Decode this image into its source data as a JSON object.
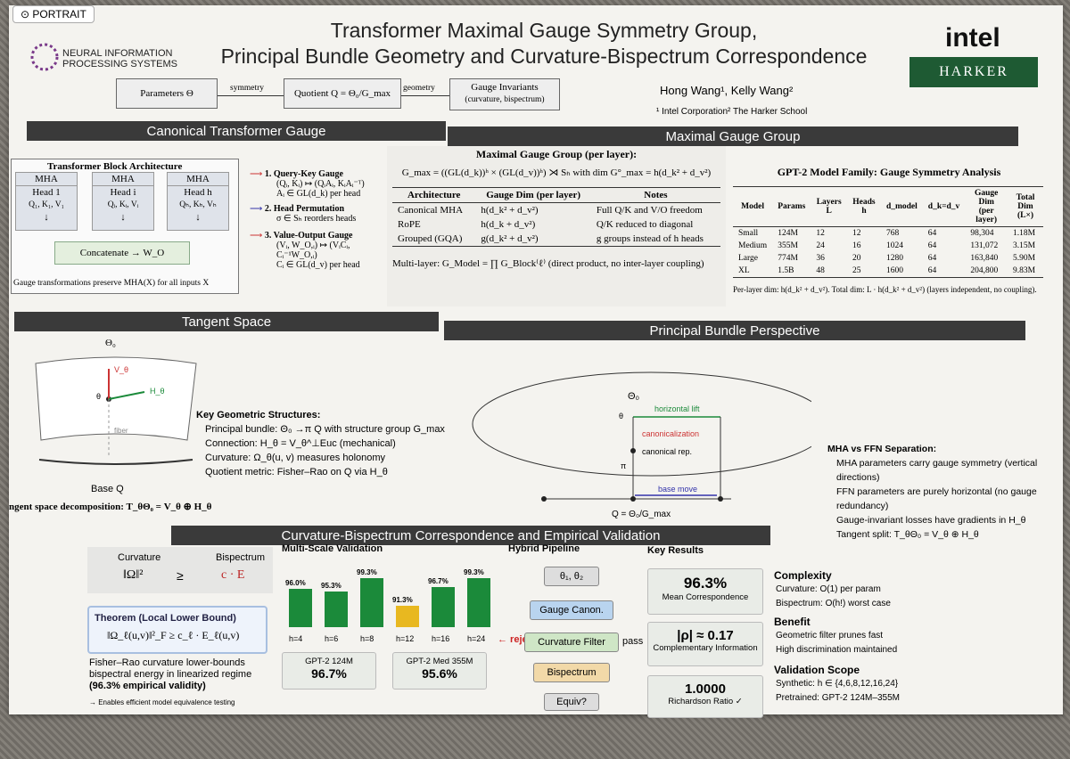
{
  "badge": "PORTRAIT",
  "title": {
    "line1": "Transformer Maximal Gauge Symmetry Group,",
    "line2": "Principal Bundle Geometry and Curvature-Bispectrum Correspondence"
  },
  "neurips": {
    "line1": "NEURAL INFORMATION",
    "line2": "PROCESSING SYSTEMS"
  },
  "authors": "Hong Wang¹, Kelly Wang²",
  "affiliations": "¹ Intel Corporation² The Harker School",
  "intel": "intel",
  "harker": "HARKER",
  "flow": {
    "a": "Parameters Θ",
    "arrow1": "symmetry",
    "b": "Quotient Q = Θ₀/G_max",
    "arrow2": "geometry",
    "c": "Gauge Invariants",
    "c2": "(curvature, bispectrum)"
  },
  "sections": {
    "canonical": "Canonical Transformer Gauge",
    "maximal": "Maximal Gauge Group",
    "tangent": "Tangent Space",
    "bundle": "Principal Bundle Perspective",
    "curv": "Curvature-Bispectrum Correspondence and Empirical Validation"
  },
  "block": {
    "title": "Transformer Block Architecture",
    "mha": "MHA",
    "h1": "Head 1",
    "h1b": "Q₁, K₁, V₁",
    "hi": "Head i",
    "hib": "Qᵢ, Kᵢ, Vᵢ",
    "hh": "Head h",
    "hhb": "Qₕ, Kₕ, Vₕ",
    "arrow": "↓",
    "concat": "Concatenate → W_O",
    "note": "Gauge transformations preserve MHA(X) for all inputs X"
  },
  "gauges": [
    {
      "t": "1. Query-Key Gauge",
      "a": "(Qᵢ, Kᵢ) ↦ (QᵢAᵢ, KᵢAᵢ⁻ᵀ)",
      "b": "Aᵢ ∈ GL(d_k) per head"
    },
    {
      "t": "2. Head Permutation",
      "a": "σ ∈ Sₕ reorders heads",
      "b": ""
    },
    {
      "t": "3. Value-Output Gauge",
      "a": "(Vᵢ, W_O,ᵢ) ↦ (VᵢCᵢ, Cᵢ⁻¹W_O,ᵢ)",
      "b": "Cᵢ ∈ GL(d_v) per head"
    }
  ],
  "mgroup": {
    "title": "Maximal Gauge Group (per layer):",
    "formula": "G_max = ((GL(d_k))ʰ × (GL(d_v))ʰ) ⋊ Sₕ   with   dim G°_max = h(d_k² + d_v²)",
    "headers": [
      "Architecture",
      "Gauge Dim (per layer)",
      "Notes"
    ],
    "rows": [
      [
        "Canonical MHA",
        "h(d_k² + d_v²)",
        "Full Q/K and V/O freedom"
      ],
      [
        "RoPE",
        "h(d_k + d_v²)",
        "Q/K reduced to diagonal"
      ],
      [
        "Grouped (GQA)",
        "g(d_k² + d_v²)",
        "g groups instead of h heads"
      ]
    ],
    "multi": "Multi-layer: G_Model = ∏ G_Block⁽ℓ⁾ (direct product, no inter-layer coupling)"
  },
  "gpt2": {
    "title": "GPT-2 Model Family: Gauge Symmetry Analysis",
    "headers": [
      "Model",
      "Params",
      "Layers L",
      "Heads h",
      "d_model",
      "d_k=d_v",
      "Gauge Dim (per layer)",
      "Total Dim (L×)"
    ],
    "rows": [
      [
        "Small",
        "124M",
        "12",
        "12",
        "768",
        "64",
        "98,304",
        "1.18M"
      ],
      [
        "Medium",
        "355M",
        "24",
        "16",
        "1024",
        "64",
        "131,072",
        "3.15M"
      ],
      [
        "Large",
        "774M",
        "36",
        "20",
        "1280",
        "64",
        "163,840",
        "5.90M"
      ],
      [
        "XL",
        "1.5B",
        "48",
        "25",
        "1600",
        "64",
        "204,800",
        "9.83M"
      ]
    ],
    "note": "Per-layer dim: h(d_k² + d_v²). Total dim: L · h(d_k² + d_v²) (layers independent, no coupling)."
  },
  "tangent": {
    "theta0": "Θ₀",
    "theta": "θ",
    "v": "V_θ",
    "h": "H_θ",
    "fiber": "fiber",
    "base": "Base Q",
    "decomp": "ngent space decomposition: T_θΘ₀ = V_θ ⊕ H_θ"
  },
  "keygeo": {
    "title": "Key Geometric Structures:",
    "items": [
      "Principal bundle: Θ₀ →π Q with structure group G_max",
      "Connection: H_θ = V_θ^⊥Euc (mechanical)",
      "Curvature: Ω_θ(u, v) measures holonomy",
      "Quotient metric: Fisher–Rao on Q via H_θ"
    ]
  },
  "bundle": {
    "theta0": "Θ₀",
    "theta": "θ",
    "hlift": "horizontal lift",
    "canon": "canonicalization",
    "canrep": "canonical rep.",
    "pi": "π",
    "bmove": "base move",
    "quot": "Q = Θ₀/G_max"
  },
  "ffn": {
    "title": "MHA vs FFN Separation:",
    "items": [
      "MHA parameters carry gauge symmetry (vertical directions)",
      "FFN parameters are purely horizontal (no gauge redundancy)",
      "Gauge-invariant losses have gradients in H_θ",
      "Tangent split: T_θΘ₀ = V_θ ⊕ H_θ"
    ]
  },
  "curv": {
    "curvature": "Curvature",
    "bispectrum": "Bispectrum",
    "omega": "‖Ω‖²",
    "geq": "≥",
    "ce": "c · E",
    "thm": "Theorem (Local Lower Bound)",
    "thmf": "‖Ω_ℓ(u,v)‖²_F ≥ c_ℓ · E_ℓ(u,v)",
    "desc1": "Fisher–Rao curvature lower-bounds",
    "desc2": "bispectral energy in linearized regime",
    "desc3": "(96.3% empirical validity)",
    "enable": "→ Enables efficient model equivalence testing"
  },
  "chart_data": {
    "type": "bar",
    "title": "Multi-Scale Validation",
    "categories": [
      "h=4",
      "h=6",
      "h=8",
      "h=12",
      "h=16",
      "h=24"
    ],
    "values": [
      96.0,
      95.3,
      99.3,
      91.3,
      96.7,
      99.3
    ],
    "labels": [
      "96.0%",
      "95.3%",
      "99.3%",
      "91.3%",
      "96.7%",
      "99.3%"
    ],
    "colors": [
      "#1b8a3a",
      "#1b8a3a",
      "#1b8a3a",
      "#e8b820",
      "#1b8a3a",
      "#1b8a3a"
    ],
    "ylim": [
      0,
      100
    ]
  },
  "mscale": {
    "reject": "← reject",
    "c1t": "GPT-2 124M",
    "c1v": "96.7%",
    "c2t": "GPT-2 Med 355M",
    "c2v": "95.6%"
  },
  "pipeline": {
    "title": "Hybrid Pipeline",
    "s0": "θ₁, θ₂",
    "s1": "Gauge Canon.",
    "s2": "Curvature Filter",
    "pass": "pass →",
    "s3": "Bispectrum",
    "s4": "Equiv?"
  },
  "results": {
    "title": "Key Results",
    "r1v": "96.3%",
    "r1t": "Mean Correspondence",
    "r2v": "|ρ| ≈ 0.17",
    "r2t": "Complementary Information",
    "r3v": "1.0000",
    "r3t": "Richardson Ratio ✓"
  },
  "side": {
    "cx": "Complexity",
    "cx1": "Curvature: O(1) per param",
    "cx2": "Bispectrum: O(h!) worst case",
    "bn": "Benefit",
    "bn1": "Geometric filter prunes fast",
    "bn2": "High discrimination maintained",
    "vs": "Validation Scope",
    "vs1": "Synthetic: h ∈ {4,6,8,12,16,24}",
    "vs2": "Pretrained: GPT-2 124M–355M"
  }
}
